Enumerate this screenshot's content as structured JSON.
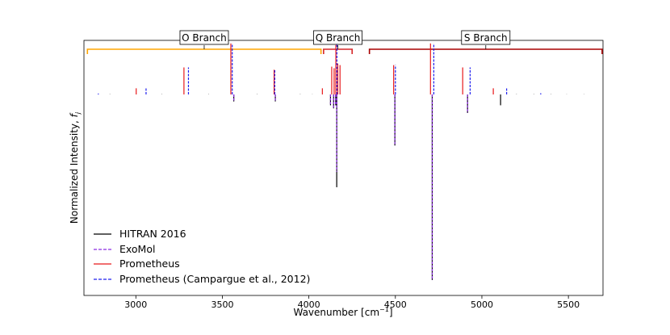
{
  "chart_data": {
    "type": "line",
    "subtype": "stick spectrum (positive and negative)",
    "xlabel": "Wavenumber [cm",
    "xlabel_sup": "−1",
    "xlabel_end": "]",
    "ylabel": "Normalized Intensity, ",
    "ylabel_var": "f",
    "ylabel_sub": "j",
    "xlim": [
      2700,
      5700
    ],
    "ylim": [
      -1.3,
      0.35
    ],
    "x_ticks": [
      3000,
      3500,
      4000,
      4500,
      5000,
      5500
    ],
    "y_ticks_shown": false,
    "legend_position": "lower-left",
    "branches": [
      {
        "label": "O Branch",
        "range": [
          2720,
          4070
        ],
        "color": "#FFA500"
      },
      {
        "label": "Q Branch",
        "range": [
          4085,
          4250
        ],
        "color": "#D62728"
      },
      {
        "label": "S Branch",
        "range": [
          4350,
          5695
        ],
        "color": "#A80000"
      }
    ],
    "series": [
      {
        "name": "HITRAN 2016",
        "color": "#000000",
        "dash": "solid",
        "x": [
          3566,
          3806,
          4125,
          4143,
          4155,
          4161,
          4497,
          4713,
          4917,
          5108
        ],
        "y": [
          -0.045,
          -0.045,
          -0.07,
          -0.09,
          -0.07,
          -0.6,
          -0.33,
          -1.2,
          -0.12,
          -0.07
        ]
      },
      {
        "name": "ExoMol",
        "color": "#8B2BE2",
        "dash": "dashed",
        "x": [
          3566,
          3806,
          4125,
          4143,
          4155,
          4161,
          4497,
          4713,
          4917
        ],
        "y": [
          -0.045,
          -0.045,
          -0.07,
          -0.09,
          -0.07,
          -0.5,
          -0.33,
          -1.2,
          -0.12
        ]
      },
      {
        "name": "Prometheus",
        "color": "#E8191B",
        "dash": "solid",
        "x": [
          3002,
          3278,
          3549,
          3799,
          4078,
          4132,
          4146,
          4156,
          4167,
          4180,
          4703,
          4889,
          5066,
          4490
        ],
        "y": [
          0.04,
          0.175,
          0.33,
          0.16,
          0.04,
          0.18,
          0.17,
          0.32,
          0.2,
          0.19,
          0.33,
          0.175,
          0.04,
          0.19
        ]
      },
      {
        "name": "Prometheus (Campargue et al., 2012)",
        "color": "#1F1FEF",
        "dash": "dashed",
        "x": [
          2783,
          3059,
          3304,
          3557,
          3803,
          4162,
          4500,
          4722,
          4932,
          5143,
          5340
        ],
        "y": [
          0.006,
          0.04,
          0.175,
          0.33,
          0.16,
          0.33,
          0.19,
          0.33,
          0.175,
          0.04,
          0.008
        ]
      }
    ],
    "minor_lines": {
      "x": [
        2850,
        3150,
        3420,
        3700,
        3950,
        4020,
        5200,
        5300,
        5400,
        5490,
        5590
      ],
      "y": [
        0.004,
        0.004,
        0.004,
        0.004,
        0.004,
        0.003,
        0.004,
        0.004,
        0.004,
        0.003,
        0.003
      ]
    }
  }
}
